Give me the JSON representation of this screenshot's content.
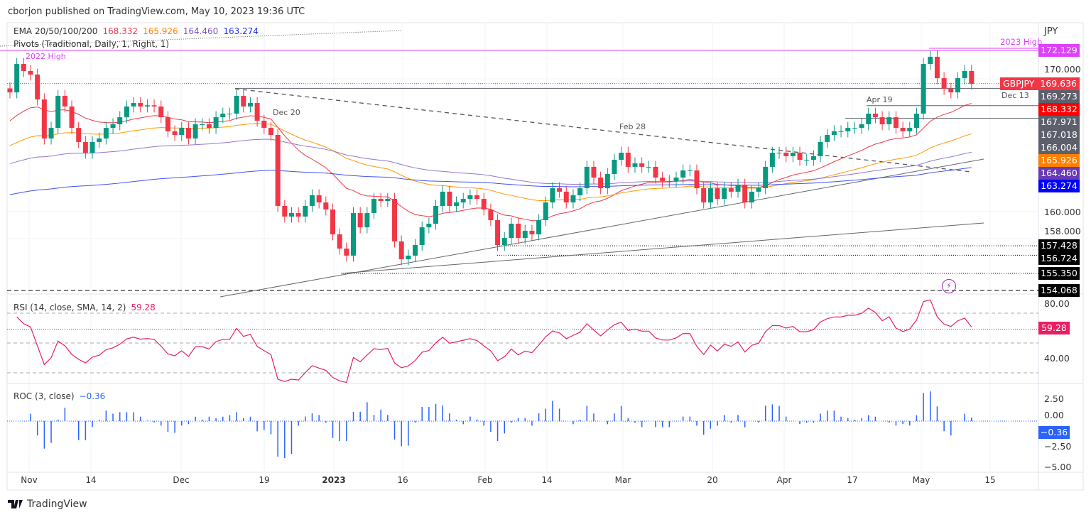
{
  "header": {
    "published": "cborjon published on TradingView.com, May 10, 2023 19:36 UTC"
  },
  "legend": {
    "ema_label": "EMA 20/50/100/200",
    "ema20": "168.332",
    "ema50": "165.926",
    "ema100": "164.460",
    "ema200": "163.274",
    "pivots": "Pivots (Traditional, Daily, 1, Right, 1)",
    "high2022": "2022 High"
  },
  "rsi_legend": {
    "label": "RSI (14, close, SMA, 14, 2)",
    "value": "59.28"
  },
  "roc_legend": {
    "label": "ROC (3, close)",
    "value": "−0.36"
  },
  "axis": {
    "currency": "JPY",
    "price_ticks": [
      "170.000",
      "160.000",
      "158.000"
    ],
    "rsi_ticks": [
      "80.00",
      "40.00"
    ],
    "roc_ticks": [
      "2.50",
      "0.00",
      "−2.50",
      "−5.00"
    ],
    "x_ticks": [
      "Nov",
      "14",
      "Dec",
      "19",
      "2023",
      "16",
      "Feb",
      "14",
      "Mar",
      "20",
      "Apr",
      "17",
      "May",
      "15"
    ]
  },
  "price_tags": [
    {
      "label": "172.129",
      "color": "#e040fb",
      "price": 172.129
    },
    {
      "label": "169.273",
      "color": "#5d606b",
      "price": 169.273
    },
    {
      "label": "168.332",
      "color": "#ff0000",
      "price": 168.332
    },
    {
      "label": "167.971",
      "color": "#5d606b",
      "price": 167.971
    },
    {
      "label": "167.018",
      "color": "#5d606b",
      "price": 167.018
    },
    {
      "label": "166.004",
      "color": "#5d606b",
      "price": 166.004
    },
    {
      "label": "165.926",
      "color": "#ff7f00",
      "price": 165.926
    },
    {
      "label": "164.460",
      "color": "#673ab7",
      "price": 164.46
    },
    {
      "label": "163.274",
      "color": "#0000ff",
      "price": 163.274
    },
    {
      "label": "157.428",
      "color": "#000000",
      "price": 157.428
    },
    {
      "label": "156.724",
      "color": "#000000",
      "price": 156.724
    },
    {
      "label": "155.350",
      "color": "#000000",
      "price": 155.35
    },
    {
      "label": "154.068",
      "color": "#000000",
      "price": 154.068
    }
  ],
  "symbol_tag": {
    "symbol": "GBPJPY",
    "price": "169.636",
    "color": "#f23645"
  },
  "rsi_tag": {
    "value": "59.28",
    "color": "#e91e63"
  },
  "roc_tag": {
    "value": "−0.36",
    "color": "#2962ff"
  },
  "annotations": {
    "high2023": "2023 High",
    "dec13": "Dec 13",
    "dec20": "Dec 20",
    "feb28": "Feb 28",
    "apr19": "Apr 19"
  },
  "footer": {
    "brand": "TradingView"
  },
  "chart_data": {
    "type": "candlestick",
    "symbol": "GBPJPY",
    "timeframe": "Daily",
    "ylim": [
      153.5,
      174.5
    ],
    "closes": [
      168.97,
      171.11,
      170.58,
      170.31,
      168.44,
      165.5,
      166.3,
      168.71,
      167.91,
      166.3,
      165.24,
      164.43,
      165.24,
      165.5,
      166.3,
      166.57,
      167.1,
      167.91,
      168.17,
      167.91,
      168.0,
      167.91,
      167.1,
      166.04,
      165.77,
      166.3,
      165.5,
      166.57,
      166.57,
      166.3,
      167.1,
      167.37,
      167.37,
      168.71,
      167.91,
      168.17,
      166.84,
      166.3,
      165.77,
      160.43,
      159.63,
      159.89,
      159.63,
      160.43,
      161.23,
      160.69,
      160.16,
      158.29,
      157.22,
      156.69,
      159.89,
      158.82,
      159.89,
      160.96,
      160.8,
      160.96,
      157.76,
      156.42,
      156.69,
      157.49,
      158.82,
      159.09,
      160.43,
      161.5,
      160.43,
      160.69,
      160.96,
      161.23,
      160.96,
      160.16,
      159.36,
      157.49,
      158.02,
      159.09,
      158.02,
      158.56,
      158.29,
      159.36,
      160.69,
      161.76,
      161.5,
      160.69,
      161.23,
      161.76,
      163.37,
      162.56,
      161.76,
      162.83,
      163.9,
      164.43,
      163.37,
      163.63,
      163.37,
      163.37,
      162.56,
      162.3,
      162.3,
      162.56,
      163.1,
      163.1,
      161.76,
      160.69,
      161.76,
      160.96,
      161.76,
      161.5,
      162.03,
      160.69,
      161.5,
      161.76,
      163.37,
      164.43,
      164.43,
      164.17,
      164.43,
      163.9,
      163.9,
      164.17,
      165.24,
      165.77,
      166.04,
      166.04,
      166.3,
      166.3,
      166.57,
      167.37,
      167.1,
      166.57,
      167.1,
      166.3,
      166.04,
      166.3,
      167.37,
      171.11,
      171.65,
      170.04,
      169.24,
      168.97,
      170.04,
      170.58,
      169.62
    ],
    "ema_colors": {
      "ema20": "#f23645",
      "ema50": "#ff9800",
      "ema100": "#9575cd",
      "ema200": "#3f51f5"
    },
    "candle_colors": {
      "up": "#089981",
      "down": "#f23645"
    },
    "horizontal_levels": [
      172.129,
      169.273,
      167.971,
      167.018,
      157.428,
      156.724,
      155.35,
      154.068
    ],
    "rsi": {
      "last": 59.28,
      "levels": [
        70,
        50,
        30
      ],
      "ylim": [
        20,
        85
      ]
    },
    "roc": {
      "last": -0.36,
      "ylim": [
        -5.5,
        3.5
      ]
    }
  }
}
